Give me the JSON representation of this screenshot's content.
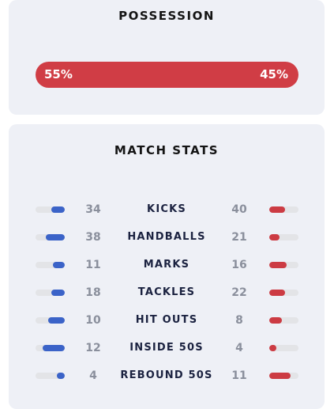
{
  "possession": {
    "title": "POSSESSION",
    "home_label": "55%",
    "away_label": "45%"
  },
  "match_stats": {
    "title": "MATCH STATS",
    "rows": [
      {
        "label": "KICKS",
        "home": 34,
        "away": 40
      },
      {
        "label": "HANDBALLS",
        "home": 38,
        "away": 21
      },
      {
        "label": "MARKS",
        "home": 11,
        "away": 16
      },
      {
        "label": "TACKLES",
        "home": 18,
        "away": 22
      },
      {
        "label": "HIT OUTS",
        "home": 10,
        "away": 8
      },
      {
        "label": "INSIDE 50S",
        "home": 12,
        "away": 4
      },
      {
        "label": "REBOUND 50S",
        "home": 4,
        "away": 11
      }
    ]
  }
}
